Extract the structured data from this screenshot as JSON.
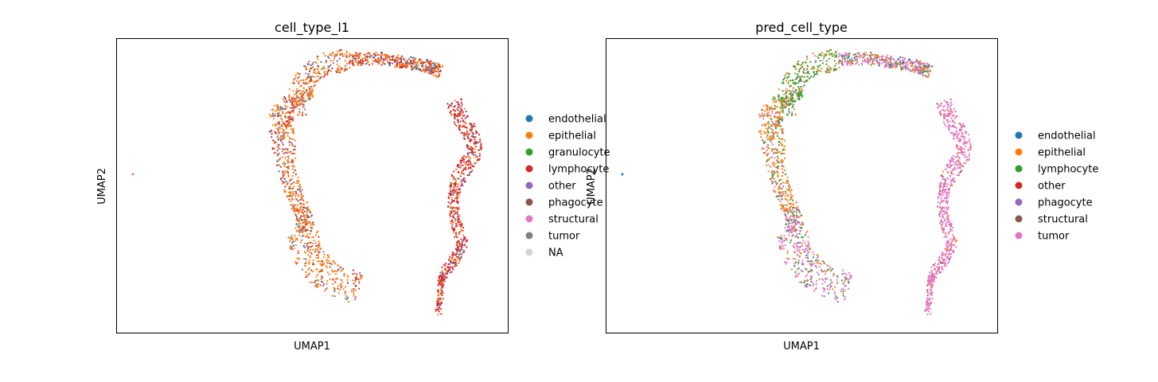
{
  "chart_data": [
    {
      "type": "scatter",
      "title": "cell_type_l1",
      "xlabel": "UMAP1",
      "ylabel": "UMAP2",
      "legend_position": "right",
      "grid": false,
      "categories": [
        {
          "name": "endothelial",
          "color": "#1f77b4"
        },
        {
          "name": "epithelial",
          "color": "#ff7f0e"
        },
        {
          "name": "granulocyte",
          "color": "#2ca02c"
        },
        {
          "name": "lymphocyte",
          "color": "#d62728"
        },
        {
          "name": "other",
          "color": "#9467bd"
        },
        {
          "name": "phagocyte",
          "color": "#8c564b"
        },
        {
          "name": "structural",
          "color": "#e377c2"
        },
        {
          "name": "tumor",
          "color": "#7f7f7f"
        },
        {
          "name": "NA",
          "color": "#d3d3d3"
        }
      ]
    },
    {
      "type": "scatter",
      "title": "pred_cell_type",
      "xlabel": "UMAP1",
      "ylabel": "UMAP2",
      "legend_position": "right",
      "grid": false,
      "categories": [
        {
          "name": "endothelial",
          "color": "#1f77b4"
        },
        {
          "name": "epithelial",
          "color": "#ff7f0e"
        },
        {
          "name": "lymphocyte",
          "color": "#2ca02c"
        },
        {
          "name": "other",
          "color": "#d62728"
        },
        {
          "name": "phagocyte",
          "color": "#9467bd"
        },
        {
          "name": "structural",
          "color": "#8c564b"
        },
        {
          "name": "tumor",
          "color": "#e377c2"
        }
      ]
    }
  ]
}
